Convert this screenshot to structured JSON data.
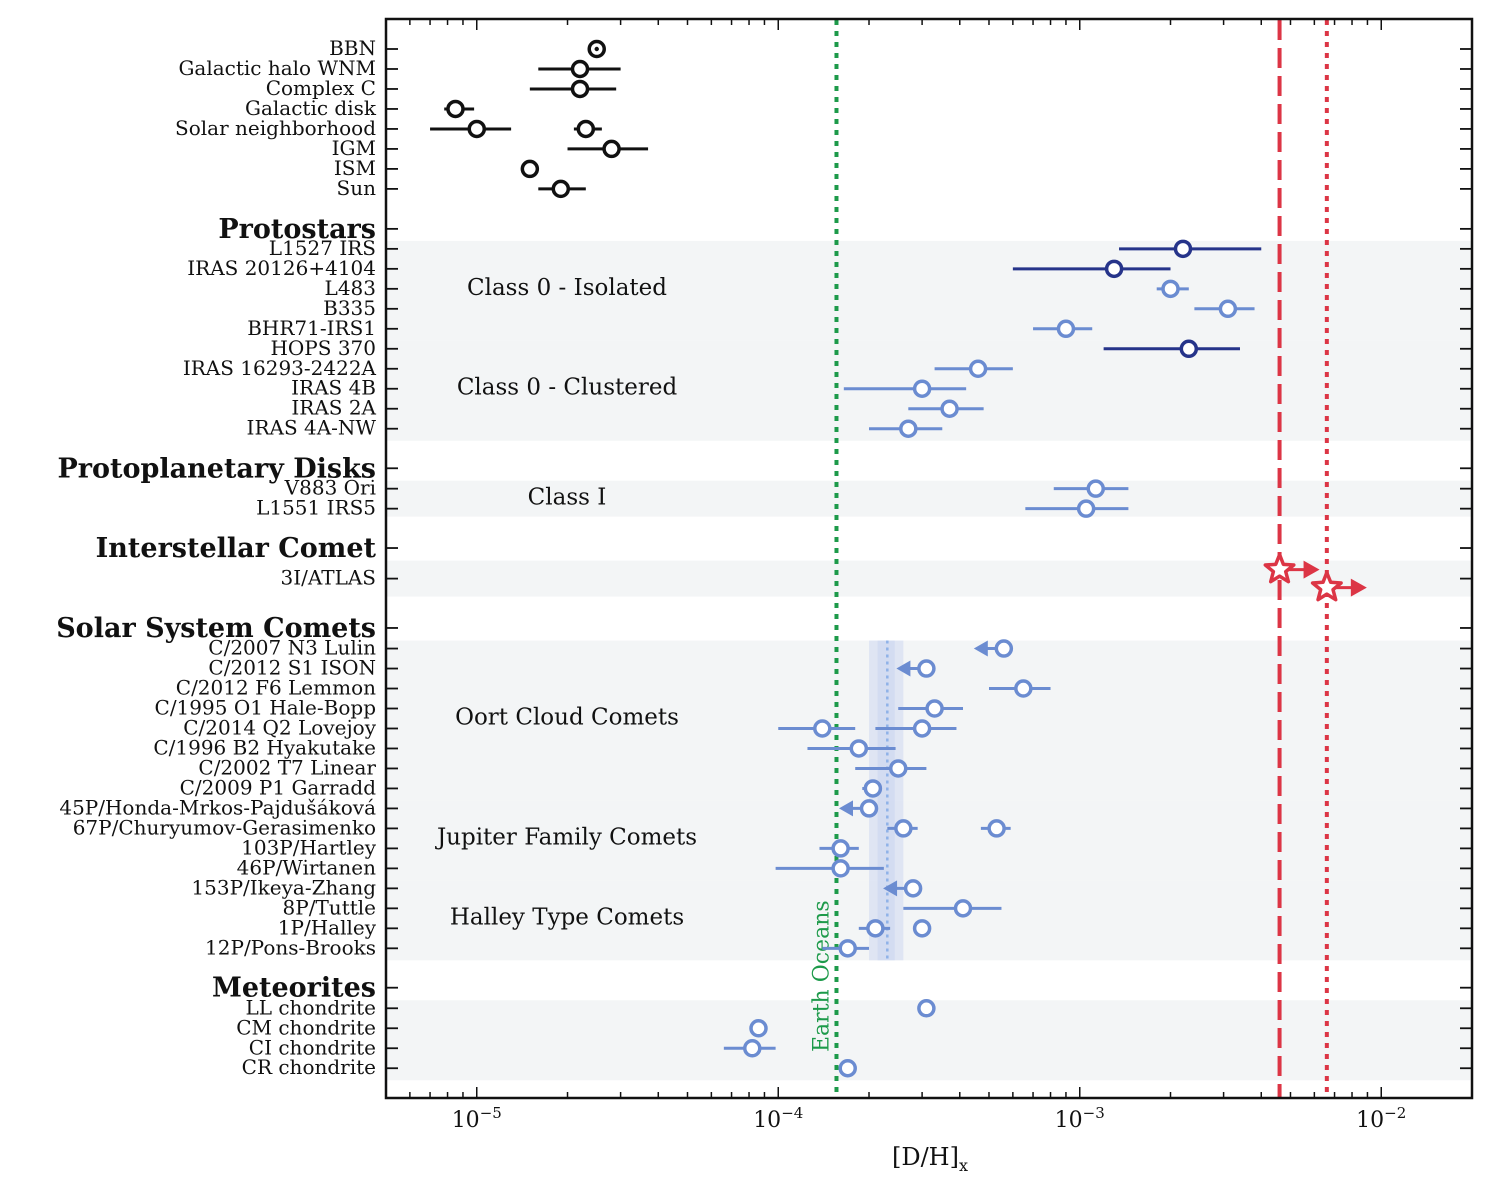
{
  "chart_data": {
    "type": "scatter",
    "scale": "log",
    "xlabel": "[D/H]",
    "xlabel_sub": "x",
    "xlim": [
      5e-06,
      0.02
    ],
    "x_ticks": [
      {
        "value": 1e-05,
        "base": "10",
        "exp": "−5"
      },
      {
        "value": 0.0001,
        "base": "10",
        "exp": "−4"
      },
      {
        "value": 0.001,
        "base": "10",
        "exp": "−3"
      },
      {
        "value": 0.01,
        "base": "10",
        "exp": "−2"
      }
    ],
    "colors": {
      "reference": "#111111",
      "dark_blue": "#26348a",
      "light_blue": "#6b8cd1",
      "red": "#dc3545",
      "green": "#1d9a4a",
      "band": "#c8d3ef",
      "shade": "#f3f5f6"
    },
    "section_headers": [
      {
        "label": "Protostars",
        "row": 9
      },
      {
        "label": "Protoplanetary Disks",
        "row": 20.98
      },
      {
        "label": "Interstellar Comet",
        "row": 24.97
      },
      {
        "label": "Solar System Comets",
        "row": 28.97
      },
      {
        "label": "Meteorites",
        "row": 46.97
      }
    ],
    "shaded_bands": [
      {
        "from": 9.6,
        "to": 14.6
      },
      {
        "from": 14.6,
        "to": 19.6
      },
      {
        "from": 21.6,
        "to": 23.4
      },
      {
        "from": 25.6,
        "to": 27.4
      },
      {
        "from": 29.6,
        "to": 37.6
      },
      {
        "from": 37.6,
        "to": 41.6
      },
      {
        "from": 41.6,
        "to": 45.6
      },
      {
        "from": 47.6,
        "to": 51.6
      }
    ],
    "group_labels": [
      {
        "label": "Class 0 - Isolated",
        "row": 11.9
      },
      {
        "label": "Class 0 - Clustered",
        "row": 16.9
      },
      {
        "label": "Class I",
        "row": 22.4
      },
      {
        "label": "Oort Cloud Comets",
        "row": 33.4
      },
      {
        "label": "Jupiter Family Comets",
        "row": 39.4
      },
      {
        "label": "Halley Type Comets",
        "row": 43.4
      }
    ],
    "rows": [
      {
        "label": "BBN",
        "row": 0,
        "points": [
          {
            "x": 2.5e-05,
            "color": "reference",
            "style": "dot"
          }
        ]
      },
      {
        "label": "Galactic halo WNM",
        "row": 1,
        "points": [
          {
            "x": 2.2e-05,
            "xerr": [
              1.6e-05,
              3e-05
            ],
            "color": "reference"
          }
        ]
      },
      {
        "label": "Complex C",
        "row": 2,
        "points": [
          {
            "x": 2.2e-05,
            "xerr": [
              1.5e-05,
              2.9e-05
            ],
            "color": "reference"
          }
        ]
      },
      {
        "label": "Galactic disk",
        "row": 3,
        "points": [
          {
            "x": 8.5e-06,
            "xerr": [
              7.8e-06,
              9.8e-06
            ],
            "color": "reference"
          }
        ]
      },
      {
        "label": "Solar neighborhood",
        "row": 4,
        "points": [
          {
            "x": 1e-05,
            "xerr": [
              7e-06,
              1.3e-05
            ],
            "color": "reference"
          },
          {
            "x": 2.3e-05,
            "xerr": [
              2.1e-05,
              2.6e-05
            ],
            "color": "reference"
          }
        ]
      },
      {
        "label": "IGM",
        "row": 5,
        "points": [
          {
            "x": 2.8e-05,
            "xerr": [
              2e-05,
              3.7e-05
            ],
            "color": "reference"
          }
        ]
      },
      {
        "label": "ISM",
        "row": 6,
        "points": [
          {
            "x": 1.5e-05,
            "color": "reference"
          }
        ]
      },
      {
        "label": "Sun",
        "row": 7,
        "points": [
          {
            "x": 1.9e-05,
            "xerr": [
              1.6e-05,
              2.3e-05
            ],
            "color": "reference"
          }
        ]
      },
      {
        "label": "L1527 IRS",
        "row": 10,
        "points": [
          {
            "x": 0.0022,
            "xerr": [
              0.00135,
              0.004
            ],
            "color": "dark_blue"
          }
        ]
      },
      {
        "label": "IRAS 20126+4104",
        "row": 11,
        "points": [
          {
            "x": 0.0013,
            "xerr": [
              0.0006,
              0.002
            ],
            "color": "dark_blue"
          }
        ]
      },
      {
        "label": "L483",
        "row": 12,
        "points": [
          {
            "x": 0.002,
            "xerr": [
              0.0018,
              0.0023
            ],
            "color": "light_blue"
          }
        ]
      },
      {
        "label": "B335",
        "row": 13,
        "points": [
          {
            "x": 0.0031,
            "xerr": [
              0.0024,
              0.0038
            ],
            "color": "light_blue"
          }
        ]
      },
      {
        "label": "BHR71-IRS1",
        "row": 14,
        "points": [
          {
            "x": 0.0009,
            "xerr": [
              0.0007,
              0.0011
            ],
            "color": "light_blue"
          }
        ]
      },
      {
        "label": "HOPS 370",
        "row": 15,
        "points": [
          {
            "x": 0.0023,
            "xerr": [
              0.0012,
              0.0034
            ],
            "color": "dark_blue"
          }
        ]
      },
      {
        "label": "IRAS 16293-2422A",
        "row": 16,
        "points": [
          {
            "x": 0.00046,
            "xerr": [
              0.00033,
              0.0006
            ],
            "color": "light_blue"
          }
        ]
      },
      {
        "label": "IRAS 4B",
        "row": 17,
        "points": [
          {
            "x": 0.0003,
            "xerr": [
              0.000165,
              0.00042
            ],
            "color": "light_blue"
          }
        ]
      },
      {
        "label": "IRAS 2A",
        "row": 18,
        "points": [
          {
            "x": 0.00037,
            "xerr": [
              0.00027,
              0.00048
            ],
            "color": "light_blue"
          }
        ]
      },
      {
        "label": "IRAS 4A-NW",
        "row": 19,
        "points": [
          {
            "x": 0.00027,
            "xerr": [
              0.0002,
              0.00035
            ],
            "color": "light_blue"
          }
        ]
      },
      {
        "label": "V883 Ori",
        "row": 22,
        "points": [
          {
            "x": 0.00113,
            "xerr": [
              0.00082,
              0.00145
            ],
            "color": "light_blue"
          }
        ]
      },
      {
        "label": "L1551 IRS5",
        "row": 23,
        "points": [
          {
            "x": 0.00105,
            "xerr": [
              0.00066,
              0.00145
            ],
            "color": "light_blue"
          }
        ]
      },
      {
        "label": "3I/ATLAS",
        "row": 26.5,
        "points": [
          {
            "x": 0.0046,
            "color": "red",
            "marker": "star",
            "limit": "lower",
            "dy": -0.45
          },
          {
            "x": 0.0066,
            "color": "red",
            "marker": "star",
            "limit": "lower",
            "dy": 0.45
          }
        ]
      },
      {
        "label": "C/2007 N3 Lulin",
        "row": 30,
        "points": [
          {
            "x": 0.00056,
            "color": "light_blue",
            "limit": "upper"
          }
        ]
      },
      {
        "label": "C/2012 S1 ISON",
        "row": 31,
        "points": [
          {
            "x": 0.00031,
            "color": "light_blue",
            "limit": "upper"
          }
        ]
      },
      {
        "label": "C/2012 F6 Lemmon",
        "row": 32,
        "points": [
          {
            "x": 0.00065,
            "xerr": [
              0.0005,
              0.0008
            ],
            "color": "light_blue"
          }
        ]
      },
      {
        "label": "C/1995 O1 Hale-Bopp",
        "row": 33,
        "points": [
          {
            "x": 0.00033,
            "xerr": [
              0.00025,
              0.00041
            ],
            "color": "light_blue"
          }
        ]
      },
      {
        "label": "C/2014 Q2 Lovejoy",
        "row": 34,
        "points": [
          {
            "x": 0.00014,
            "xerr": [
              0.0001,
              0.00018
            ],
            "color": "light_blue"
          },
          {
            "x": 0.0003,
            "xerr": [
              0.00021,
              0.00039
            ],
            "color": "light_blue"
          }
        ]
      },
      {
        "label": "C/1996 B2 Hyakutake",
        "row": 35,
        "points": [
          {
            "x": 0.000185,
            "xerr": [
              0.000125,
              0.000245
            ],
            "color": "light_blue"
          }
        ]
      },
      {
        "label": "C/2002 T7 Linear",
        "row": 36,
        "points": [
          {
            "x": 0.00025,
            "xerr": [
              0.00018,
              0.00031
            ],
            "color": "light_blue"
          }
        ]
      },
      {
        "label": "C/2009 P1 Garradd",
        "row": 37,
        "points": [
          {
            "x": 0.000206,
            "xerr": [
              0.00019,
              0.00022
            ],
            "color": "light_blue"
          }
        ]
      },
      {
        "label": "45P/Honda-Mrkos-Pajdušáková",
        "row": 38,
        "points": [
          {
            "x": 0.0002,
            "color": "light_blue",
            "limit": "upper"
          }
        ]
      },
      {
        "label": "67P/Churyumov-Gerasimenko",
        "row": 39,
        "points": [
          {
            "x": 0.00026,
            "xerr": [
              0.00023,
              0.00029
            ],
            "color": "light_blue"
          },
          {
            "x": 0.00053,
            "xerr": [
              0.00047,
              0.00059
            ],
            "color": "light_blue"
          }
        ]
      },
      {
        "label": "103P/Hartley",
        "row": 40,
        "points": [
          {
            "x": 0.000161,
            "xerr": [
              0.000137,
              0.000185
            ],
            "color": "light_blue"
          }
        ]
      },
      {
        "label": "46P/Wirtanen",
        "row": 41,
        "points": [
          {
            "x": 0.000161,
            "xerr": [
              9.8e-05,
              0.000224
            ],
            "color": "light_blue"
          }
        ]
      },
      {
        "label": "153P/Ikeya-Zhang",
        "row": 42,
        "points": [
          {
            "x": 0.00028,
            "color": "light_blue",
            "limit": "upper"
          }
        ]
      },
      {
        "label": "8P/Tuttle",
        "row": 43,
        "points": [
          {
            "x": 0.00041,
            "xerr": [
              0.00026,
              0.00055
            ],
            "color": "light_blue"
          }
        ]
      },
      {
        "label": "1P/Halley",
        "row": 44,
        "points": [
          {
            "x": 0.00021,
            "xerr": [
              0.000185,
              0.000235
            ],
            "color": "light_blue"
          },
          {
            "x": 0.0003,
            "color": "light_blue"
          }
        ]
      },
      {
        "label": "12P/Pons-Brooks",
        "row": 45,
        "points": [
          {
            "x": 0.00017,
            "xerr": [
              0.00014,
              0.0002
            ],
            "color": "light_blue"
          }
        ]
      },
      {
        "label": "LL chondrite",
        "row": 48,
        "points": [
          {
            "x": 0.00031,
            "xerr": [
              0.00029,
              0.00033
            ],
            "color": "light_blue"
          }
        ]
      },
      {
        "label": "CM chondrite",
        "row": 49,
        "points": [
          {
            "x": 8.6e-05,
            "color": "light_blue"
          }
        ]
      },
      {
        "label": "CI chondrite",
        "row": 50,
        "points": [
          {
            "x": 8.2e-05,
            "xerr": [
              6.6e-05,
              9.8e-05
            ],
            "color": "light_blue"
          }
        ]
      },
      {
        "label": "CR chondrite",
        "row": 51,
        "points": [
          {
            "x": 0.00017,
            "color": "light_blue"
          }
        ]
      }
    ],
    "reference_lines": [
      {
        "label": "Earth Oceans",
        "x": 0.000156,
        "color": "green",
        "style": "dotted"
      },
      {
        "label": "",
        "x": 0.0046,
        "color": "red",
        "style": "dashed"
      },
      {
        "label": "",
        "x": 0.0066,
        "color": "red",
        "style": "dotted"
      }
    ],
    "comet_band": {
      "x_low": 0.0002,
      "x_high": 0.00026,
      "x_mid": 0.00023,
      "row_from": 29.6,
      "row_to": 45.6
    }
  }
}
